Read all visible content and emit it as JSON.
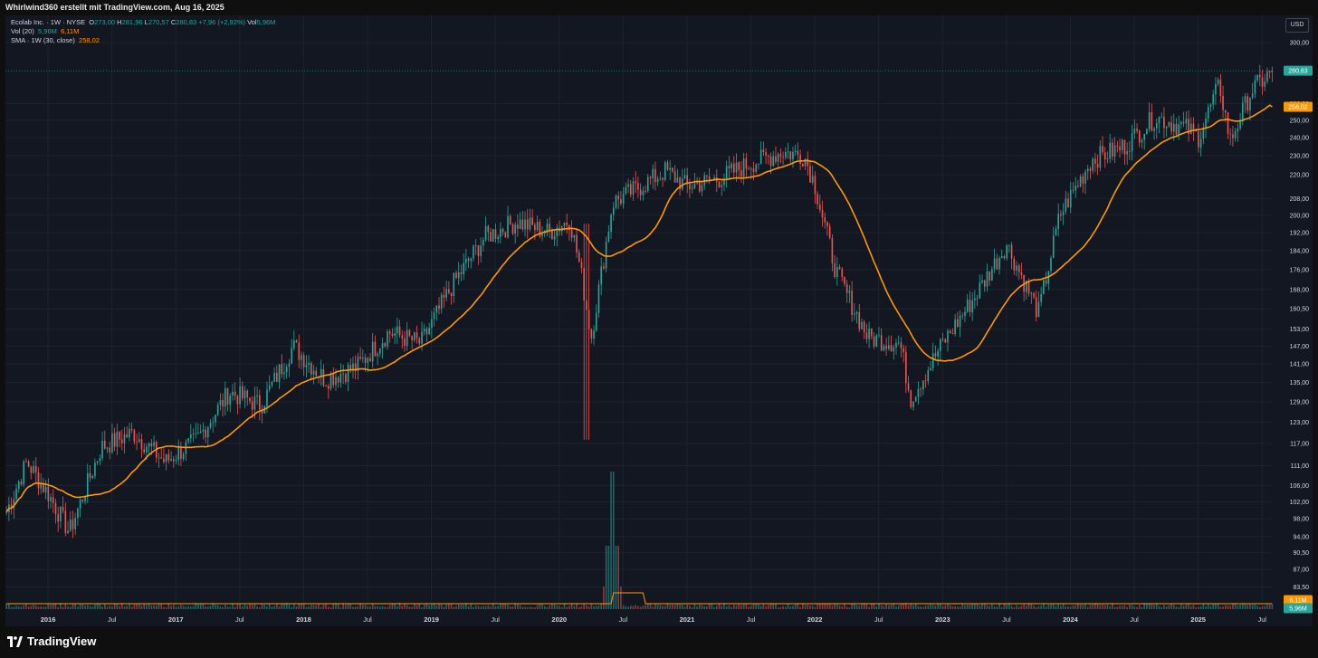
{
  "header": {
    "attribution": "Whirlwind360 erstellt mit TradingView.com, Aug 16, 2025"
  },
  "legend": {
    "symbol": "Ecolab Inc. · 1W · NYSE",
    "ohlc": {
      "o_label": "O",
      "o": "273,00",
      "h_label": "H",
      "h": "281,96",
      "l_label": "L",
      "l": "270,57",
      "c_label": "C",
      "c": "280,83",
      "chg": "+7,96 (+2,92%)",
      "vol_label": "Vol",
      "vol": "5,96M"
    },
    "vol_indicator": {
      "label": "Vol (20)",
      "v1": "5,96M",
      "v2": "6,11M"
    },
    "sma_indicator": {
      "label": "SMA · 1W (30, close)",
      "value": "258,02"
    }
  },
  "currency_button": "USD",
  "price_labels": {
    "last": "280,83",
    "sma": "258,02",
    "vol_ma": "6,11M",
    "vol_last": "5,96M"
  },
  "footer": {
    "brand": "TradingView"
  },
  "colors": {
    "up": "#26a69a",
    "down": "#ef5350",
    "sma": "#ff9800",
    "bg": "#131722",
    "grid": "#1e222d",
    "text": "#d1d4dc"
  },
  "chart_data": {
    "type": "candlestick",
    "title": "Ecolab Inc. · 1W · NYSE",
    "y_scale": "log",
    "ylim": [
      82,
      302
    ],
    "y_ticks": [
      "300,00",
      "260,00",
      "250,00",
      "240,00",
      "230,00",
      "220,00",
      "208,00",
      "200,00",
      "192,00",
      "184,00",
      "176,00",
      "168,00",
      "160,50",
      "153,00",
      "147,00",
      "141,00",
      "135,00",
      "129,00",
      "123,00",
      "117,00",
      "111,00",
      "106,00",
      "102,00",
      "98,00",
      "94,00",
      "90,50",
      "87,00",
      "83,50"
    ],
    "x_ticks": [
      "2016",
      "Jul",
      "2017",
      "Jul",
      "2018",
      "Jul",
      "2019",
      "Jul",
      "2020",
      "Jul",
      "2021",
      "Jul",
      "2022",
      "Jul",
      "2023",
      "Jul",
      "2024",
      "Jul",
      "2025",
      "Jul"
    ],
    "x_tick_dates": [
      "2016-01",
      "2016-07",
      "2017-01",
      "2017-07",
      "2018-01",
      "2018-07",
      "2019-01",
      "2019-07",
      "2020-01",
      "2020-07",
      "2021-01",
      "2021-07",
      "2022-01",
      "2022-07",
      "2023-01",
      "2023-07",
      "2024-01",
      "2024-07",
      "2025-01",
      "2025-07"
    ],
    "x_range": [
      "2015-09",
      "2025-08"
    ],
    "price_path": {
      "dates": [
        "2015-09",
        "2015-11",
        "2016-01",
        "2016-03",
        "2016-06",
        "2016-09",
        "2016-12",
        "2017-03",
        "2017-06",
        "2017-09",
        "2017-12",
        "2018-03",
        "2018-06",
        "2018-09",
        "2018-12",
        "2019-03",
        "2019-06",
        "2019-09",
        "2019-12",
        "2020-02",
        "2020-03",
        "2020-04",
        "2020-06",
        "2020-08",
        "2020-11",
        "2021-01",
        "2021-04",
        "2021-07",
        "2021-10",
        "2021-12",
        "2022-01",
        "2022-03",
        "2022-06",
        "2022-09",
        "2022-10",
        "2023-01",
        "2023-04",
        "2023-07",
        "2023-10",
        "2023-12",
        "2024-03",
        "2024-06",
        "2024-09",
        "2024-12",
        "2025-01",
        "2025-03",
        "2025-04",
        "2025-06",
        "2025-08"
      ],
      "values": [
        99,
        112,
        104,
        95,
        116,
        120,
        112,
        118,
        132,
        128,
        147,
        136,
        140,
        152,
        148,
        170,
        190,
        197,
        192,
        198,
        176,
        150,
        206,
        212,
        222,
        214,
        218,
        226,
        232,
        230,
        215,
        175,
        150,
        148,
        130,
        148,
        165,
        187,
        159,
        200,
        228,
        235,
        252,
        245,
        240,
        272,
        238,
        268,
        280.83
      ]
    },
    "sma_30": {
      "label": "SMA · 1W (30, close)",
      "last": 258.02
    },
    "volume": {
      "label": "Vol (20)",
      "last": "5,96M",
      "ma": "6,11M",
      "peak_date": "2020-06",
      "ma_elevated_range": [
        "2020-06",
        "2020-09"
      ]
    },
    "last_close": 280.83,
    "currency": "USD"
  }
}
